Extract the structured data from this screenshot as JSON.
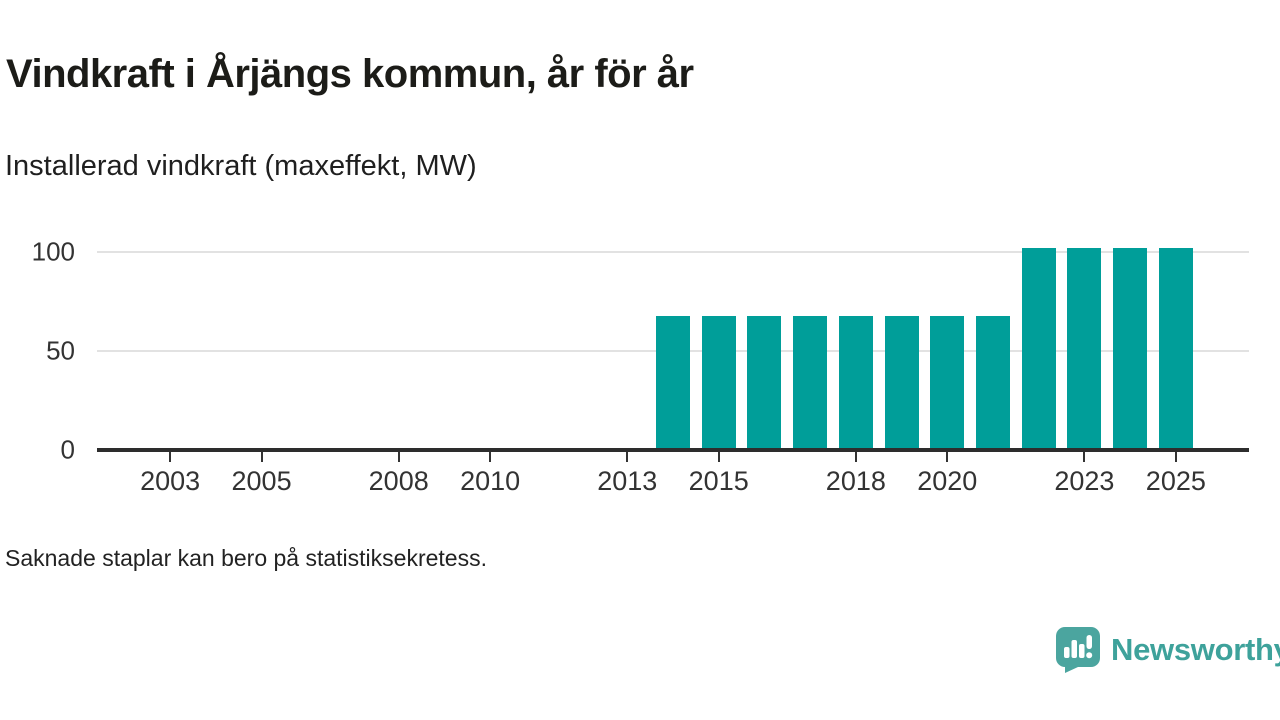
{
  "header": {
    "title": "Vindkraft i Årjängs kommun, år för år",
    "subtitle": "Installerad vindkraft (maxeffekt, MW)"
  },
  "footnote": "Saknade staplar kan bero på statistiksekretess.",
  "branding": {
    "name": "Newsworthy",
    "icon": "newsworthy-speech-bubble-chart-icon",
    "icon_color": "#4BA59F",
    "text_color": "#3EA29B"
  },
  "chart_data": {
    "type": "bar",
    "title": "Vindkraft i Årjängs kommun, år för år",
    "subtitle": "Installerad vindkraft (maxeffekt, MW)",
    "xlabel": "",
    "ylabel": "Installerad vindkraft (maxeffekt, MW)",
    "unit": "MW",
    "bar_color": "#009E99",
    "categories": [
      2014,
      2015,
      2016,
      2017,
      2018,
      2019,
      2020,
      2021,
      2022,
      2023,
      2024,
      2025
    ],
    "values": [
      67.7,
      67.7,
      67.7,
      67.7,
      67.7,
      67.7,
      67.7,
      67.7,
      101.8,
      101.8,
      101.8,
      101.8
    ],
    "x_ticks": [
      2003,
      2005,
      2008,
      2010,
      2013,
      2015,
      2018,
      2020,
      2023,
      2025
    ],
    "y_ticks": [
      0,
      50,
      100
    ],
    "gridline_values": [
      50,
      100
    ],
    "x_range": [
      2001.4,
      2026.6
    ],
    "y_range": [
      0,
      111
    ],
    "grid": "horizontal gridlines only",
    "legend": "none",
    "note": "No bars shown for 2002-2013; bars start in 2014"
  }
}
